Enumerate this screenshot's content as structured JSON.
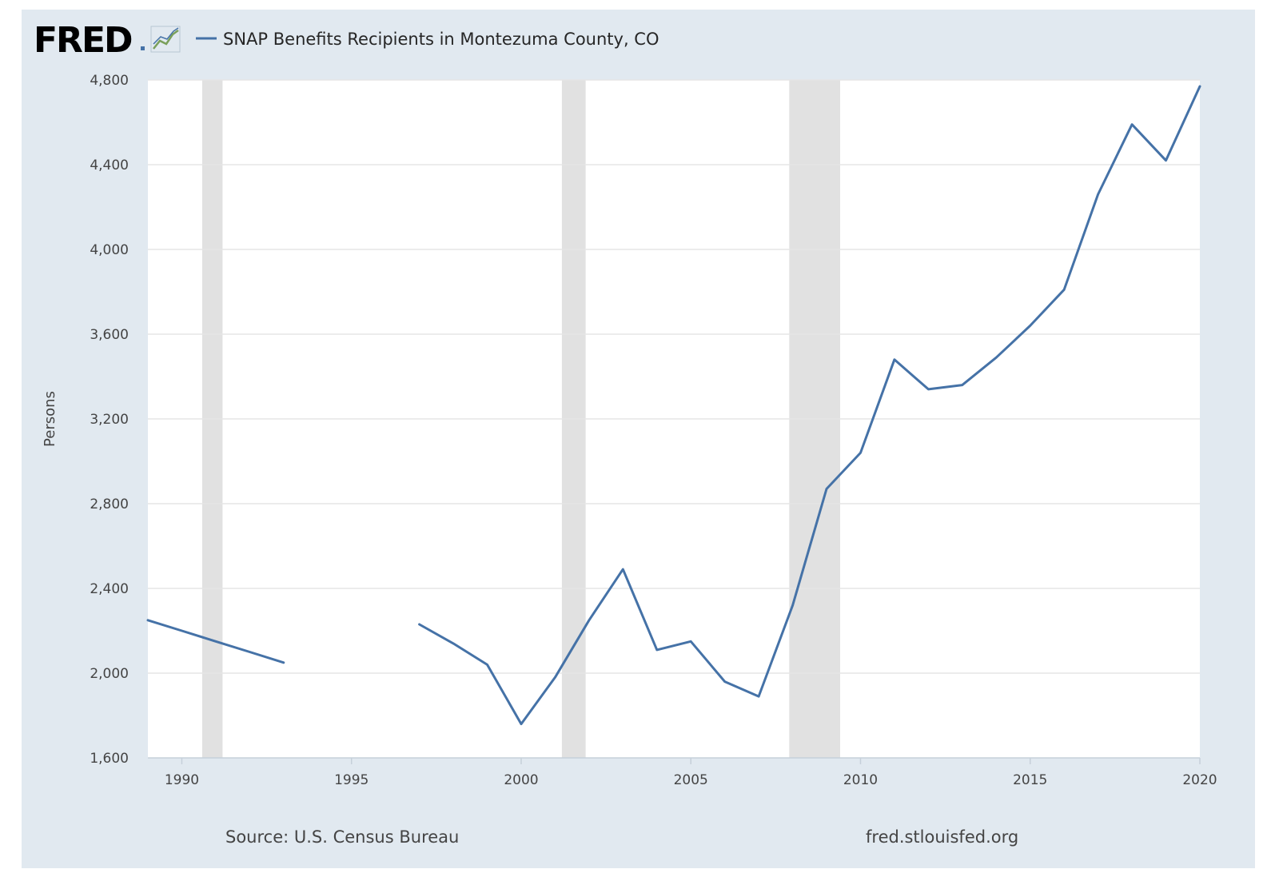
{
  "logo": {
    "text": "FRED",
    "icon": "line-chart-icon"
  },
  "legend": {
    "label": "SNAP Benefits Recipients in Montezuma County, CO"
  },
  "footer": {
    "source": "Source: U.S. Census Bureau",
    "site": "fred.stlouisfed.org"
  },
  "colors": {
    "line": "#4572a7",
    "recession": "#e1e1e1",
    "background": "#e1e9f0",
    "plot": "#ffffff",
    "grid": "#e6e6e6"
  },
  "chart_data": {
    "type": "line",
    "title": "",
    "xlabel": "",
    "ylabel": "Persons",
    "xlim": [
      1989,
      2020
    ],
    "ylim": [
      1600,
      4800
    ],
    "x_ticks": [
      1990,
      1995,
      2000,
      2005,
      2010,
      2015,
      2020
    ],
    "y_ticks": [
      1600,
      2000,
      2400,
      2800,
      3200,
      3600,
      4000,
      4400,
      4800
    ],
    "y_tick_labels": [
      "1,600",
      "2,000",
      "2,400",
      "2,800",
      "3,200",
      "3,600",
      "4,000",
      "4,400",
      "4,800"
    ],
    "grid": true,
    "legend_position": "top-left",
    "recessions": [
      [
        1990.6,
        1991.2
      ],
      [
        2001.2,
        2001.9
      ],
      [
        2007.9,
        2009.4
      ]
    ],
    "series": [
      {
        "name": "SNAP Benefits Recipients in Montezuma County, CO",
        "segments": [
          [
            [
              1989,
              2250
            ],
            [
              1990,
              2200
            ],
            [
              1991,
              2150
            ],
            [
              1992,
              2100
            ],
            [
              1993,
              2050
            ]
          ],
          [
            [
              1997,
              2230
            ],
            [
              1998,
              2140
            ],
            [
              1999,
              2040
            ],
            [
              2000,
              1760
            ],
            [
              2001,
              1980
            ],
            [
              2002,
              2250
            ],
            [
              2003,
              2490
            ],
            [
              2004,
              2110
            ],
            [
              2005,
              2150
            ],
            [
              2006,
              1960
            ],
            [
              2007,
              1890
            ],
            [
              2008,
              2320
            ],
            [
              2009,
              2870
            ],
            [
              2010,
              3040
            ],
            [
              2011,
              3480
            ],
            [
              2012,
              3340
            ],
            [
              2013,
              3360
            ],
            [
              2014,
              3490
            ],
            [
              2015,
              3640
            ],
            [
              2016,
              3810
            ],
            [
              2017,
              4260
            ],
            [
              2018,
              4590
            ],
            [
              2019,
              4420
            ],
            [
              2020,
              4770
            ]
          ]
        ]
      }
    ]
  }
}
